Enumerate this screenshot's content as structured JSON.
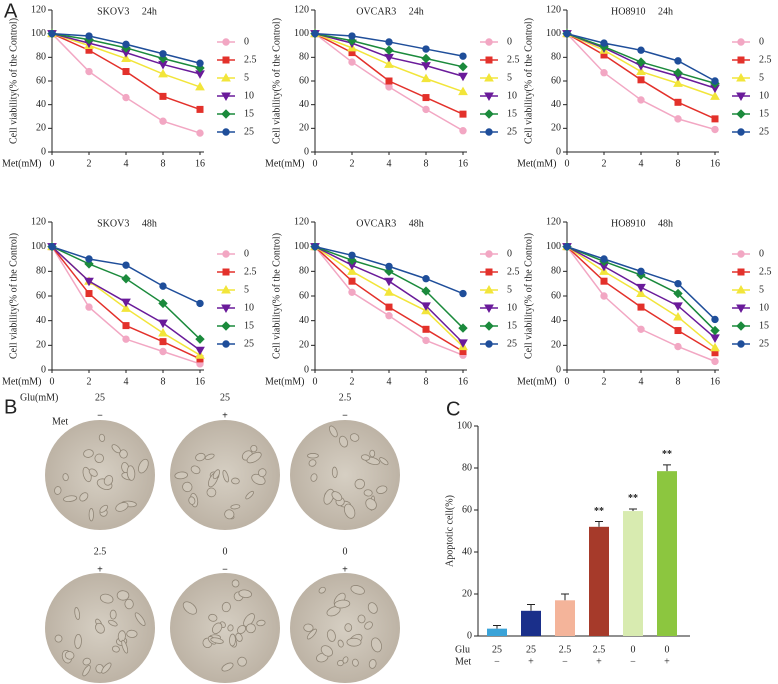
{
  "panels": {
    "a": "A",
    "b": "B",
    "c": "C"
  },
  "chart_data": [
    {
      "type": "line",
      "title": "SKOV3 24h",
      "x_label": "Met(mM)",
      "y_label": "Cell viability(% of the Control)",
      "categories": [
        "0",
        "2",
        "4",
        "8",
        "16"
      ],
      "ylim": [
        0,
        120
      ],
      "yticks": [
        0,
        20,
        40,
        60,
        80,
        100,
        120
      ],
      "series": [
        {
          "name": "0",
          "color": "#f2a7c3",
          "marker": "circle",
          "values": [
            100,
            68,
            46,
            26,
            16
          ]
        },
        {
          "name": "2.5",
          "color": "#e3312b",
          "marker": "square",
          "values": [
            100,
            86,
            68,
            47,
            36
          ]
        },
        {
          "name": "5",
          "color": "#f2e53a",
          "marker": "triangle",
          "values": [
            100,
            90,
            79,
            66,
            55
          ]
        },
        {
          "name": "10",
          "color": "#6a1b9a",
          "marker": "triangle-down",
          "values": [
            100,
            92,
            84,
            74,
            66
          ]
        },
        {
          "name": "15",
          "color": "#1b8a3c",
          "marker": "diamond",
          "values": [
            100,
            95,
            88,
            79,
            71
          ]
        },
        {
          "name": "25",
          "color": "#1f4e9a",
          "marker": "circle",
          "values": [
            100,
            98,
            91,
            83,
            75
          ]
        }
      ]
    },
    {
      "type": "line",
      "title": "OVCAR3 24h",
      "x_label": "Met(mM)",
      "y_label": "Cell viability(% of the Control)",
      "categories": [
        "0",
        "2",
        "4",
        "8",
        "16"
      ],
      "ylim": [
        0,
        120
      ],
      "yticks": [
        0,
        20,
        40,
        60,
        80,
        100,
        120
      ],
      "series": [
        {
          "name": "0",
          "color": "#f2a7c3",
          "marker": "circle",
          "values": [
            100,
            76,
            55,
            36,
            18
          ]
        },
        {
          "name": "2.5",
          "color": "#e3312b",
          "marker": "square",
          "values": [
            100,
            84,
            60,
            46,
            32
          ]
        },
        {
          "name": "5",
          "color": "#f2e53a",
          "marker": "triangle",
          "values": [
            100,
            88,
            74,
            62,
            51
          ]
        },
        {
          "name": "10",
          "color": "#6a1b9a",
          "marker": "triangle-down",
          "values": [
            100,
            92,
            80,
            73,
            64
          ]
        },
        {
          "name": "15",
          "color": "#1b8a3c",
          "marker": "diamond",
          "values": [
            100,
            94,
            86,
            79,
            72
          ]
        },
        {
          "name": "25",
          "color": "#1f4e9a",
          "marker": "circle",
          "values": [
            100,
            98,
            93,
            87,
            81
          ]
        }
      ]
    },
    {
      "type": "line",
      "title": "HO8910 24h",
      "x_label": "Met(mM)",
      "y_label": "Cell viability(% of the Control)",
      "categories": [
        "0",
        "2",
        "4",
        "8",
        "16"
      ],
      "ylim": [
        0,
        120
      ],
      "yticks": [
        0,
        20,
        40,
        60,
        80,
        100,
        120
      ],
      "series": [
        {
          "name": "0",
          "color": "#f2a7c3",
          "marker": "circle",
          "values": [
            100,
            67,
            44,
            28,
            19
          ]
        },
        {
          "name": "2.5",
          "color": "#e3312b",
          "marker": "square",
          "values": [
            100,
            82,
            61,
            42,
            28
          ]
        },
        {
          "name": "5",
          "color": "#f2e53a",
          "marker": "triangle",
          "values": [
            100,
            86,
            68,
            58,
            47
          ]
        },
        {
          "name": "10",
          "color": "#6a1b9a",
          "marker": "triangle-down",
          "values": [
            100,
            88,
            73,
            64,
            54
          ]
        },
        {
          "name": "15",
          "color": "#1b8a3c",
          "marker": "diamond",
          "values": [
            100,
            89,
            76,
            67,
            58
          ]
        },
        {
          "name": "25",
          "color": "#1f4e9a",
          "marker": "circle",
          "values": [
            100,
            92,
            86,
            77,
            60
          ]
        }
      ]
    },
    {
      "type": "line",
      "title": "SKOV3 48h",
      "x_label": "Met(mM)",
      "y_label": "Cell viability(% of the Control)",
      "categories": [
        "0",
        "2",
        "4",
        "8",
        "16"
      ],
      "ylim": [
        0,
        120
      ],
      "yticks": [
        0,
        20,
        40,
        60,
        80,
        100,
        120
      ],
      "series": [
        {
          "name": "0",
          "color": "#f2a7c3",
          "marker": "circle",
          "values": [
            100,
            51,
            25,
            15,
            5
          ]
        },
        {
          "name": "2.5",
          "color": "#e3312b",
          "marker": "square",
          "values": [
            100,
            62,
            36,
            23,
            9
          ]
        },
        {
          "name": "5",
          "color": "#f2e53a",
          "marker": "triangle",
          "values": [
            100,
            72,
            50,
            30,
            12
          ]
        },
        {
          "name": "10",
          "color": "#6a1b9a",
          "marker": "triangle-down",
          "values": [
            100,
            72,
            55,
            38,
            16
          ]
        },
        {
          "name": "15",
          "color": "#1b8a3c",
          "marker": "diamond",
          "values": [
            100,
            86,
            74,
            54,
            25
          ]
        },
        {
          "name": "25",
          "color": "#1f4e9a",
          "marker": "circle",
          "values": [
            100,
            90,
            85,
            68,
            54
          ]
        }
      ]
    },
    {
      "type": "line",
      "title": "OVCAR3 48h",
      "x_label": "Met(mM)",
      "y_label": "Cell viability(% of the Control)",
      "categories": [
        "0",
        "2",
        "4",
        "8",
        "16"
      ],
      "ylim": [
        0,
        120
      ],
      "yticks": [
        0,
        20,
        40,
        60,
        80,
        100,
        120
      ],
      "series": [
        {
          "name": "0",
          "color": "#f2a7c3",
          "marker": "circle",
          "values": [
            100,
            63,
            44,
            24,
            12
          ]
        },
        {
          "name": "2.5",
          "color": "#e3312b",
          "marker": "square",
          "values": [
            100,
            72,
            51,
            33,
            15
          ]
        },
        {
          "name": "5",
          "color": "#f2e53a",
          "marker": "triangle",
          "values": [
            100,
            80,
            63,
            48,
            19
          ]
        },
        {
          "name": "10",
          "color": "#6a1b9a",
          "marker": "triangle-down",
          "values": [
            100,
            85,
            72,
            52,
            22
          ]
        },
        {
          "name": "15",
          "color": "#1b8a3c",
          "marker": "diamond",
          "values": [
            100,
            89,
            80,
            64,
            34
          ]
        },
        {
          "name": "25",
          "color": "#1f4e9a",
          "marker": "circle",
          "values": [
            100,
            93,
            84,
            74,
            62
          ]
        }
      ]
    },
    {
      "type": "line",
      "title": "HO8910 48h",
      "x_label": "Met(mM)",
      "y_label": "Cell viability(% of the Control)",
      "categories": [
        "0",
        "2",
        "4",
        "8",
        "16"
      ],
      "ylim": [
        0,
        120
      ],
      "yticks": [
        0,
        20,
        40,
        60,
        80,
        100,
        120
      ],
      "series": [
        {
          "name": "0",
          "color": "#f2a7c3",
          "marker": "circle",
          "values": [
            100,
            60,
            33,
            19,
            7
          ]
        },
        {
          "name": "2.5",
          "color": "#e3312b",
          "marker": "square",
          "values": [
            100,
            72,
            51,
            32,
            14
          ]
        },
        {
          "name": "5",
          "color": "#f2e53a",
          "marker": "triangle",
          "values": [
            100,
            80,
            62,
            43,
            18
          ]
        },
        {
          "name": "10",
          "color": "#6a1b9a",
          "marker": "triangle-down",
          "values": [
            100,
            84,
            67,
            52,
            26
          ]
        },
        {
          "name": "15",
          "color": "#1b8a3c",
          "marker": "diamond",
          "values": [
            100,
            88,
            77,
            62,
            32
          ]
        },
        {
          "name": "25",
          "color": "#1f4e9a",
          "marker": "circle",
          "values": [
            100,
            90,
            80,
            70,
            41
          ]
        }
      ]
    },
    {
      "type": "bar",
      "y_label": "Apoptotic cell(%)",
      "ylim": [
        0,
        100
      ],
      "yticks": [
        0,
        20,
        40,
        60,
        80,
        100
      ],
      "rows": [
        {
          "name": "Glu",
          "labels": [
            "25",
            "25",
            "2.5",
            "2.5",
            "0",
            "0"
          ]
        },
        {
          "name": "Met",
          "labels": [
            "−",
            "+",
            "−",
            "+",
            "−",
            "+"
          ]
        }
      ],
      "values": [
        3.5,
        12,
        17,
        52,
        59.5,
        78.5
      ],
      "errors": [
        1.5,
        3,
        3,
        2.5,
        1,
        3
      ],
      "colors": [
        "#3aa3d8",
        "#1a2f8a",
        "#f4b49a",
        "#a63a2a",
        "#d8ebb0",
        "#8cc63f"
      ],
      "significance": [
        null,
        null,
        null,
        "**",
        "**",
        "**"
      ]
    }
  ],
  "micrographs": {
    "glu_label": "Glu(mM)",
    "met_label": "Met",
    "cells": [
      {
        "glu": "25",
        "met": "−"
      },
      {
        "glu": "25",
        "met": "+"
      },
      {
        "glu": "2.5",
        "met": "−"
      },
      {
        "glu": "2.5",
        "met": "+"
      },
      {
        "glu": "0",
        "met": "−"
      },
      {
        "glu": "0",
        "met": "+"
      }
    ]
  }
}
